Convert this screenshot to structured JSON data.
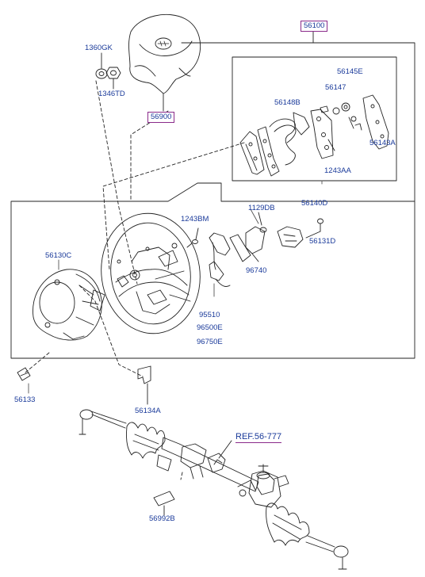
{
  "labels": {
    "p56100": "56100",
    "p1360GK": "1360GK",
    "p1346TD": "1346TD",
    "p56900": "56900",
    "p56145E": "56145E",
    "p56147": "56147",
    "p56148B": "56148B",
    "p56143A": "56143A",
    "p1243AA": "1243AA",
    "p56140D": "56140D",
    "p1243BM": "1243BM",
    "p1129DB": "1129DB",
    "p56131D": "56131D",
    "p56130C": "56130C",
    "p96740": "96740",
    "p95510": "95510",
    "p96500E": "96500E",
    "p96750E": "96750E",
    "p56133": "56133",
    "p56134A": "56134A",
    "ref": "REF.56-777",
    "p56992B": "56992B"
  }
}
